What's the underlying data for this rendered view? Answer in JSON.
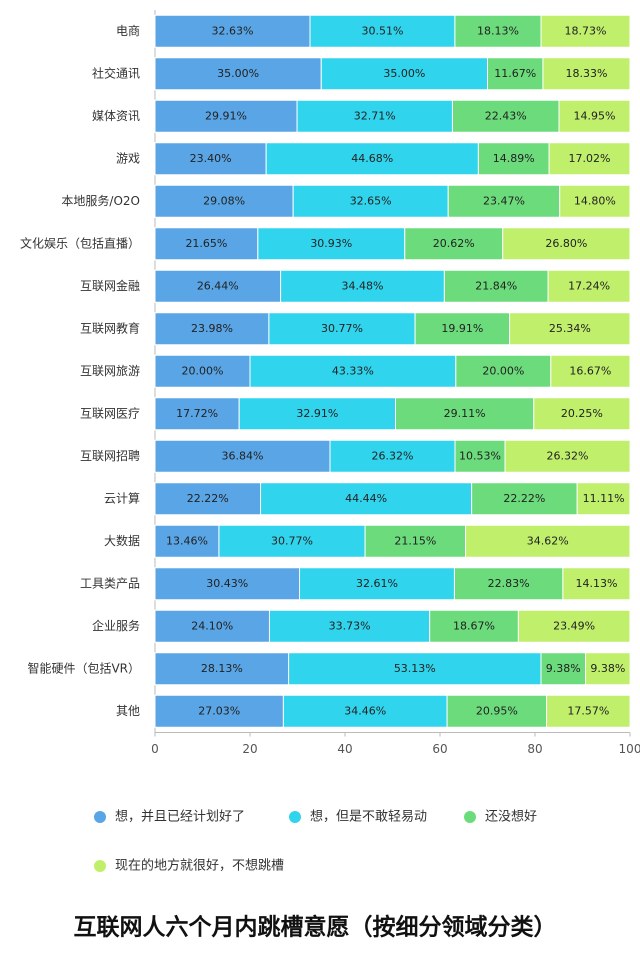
{
  "chart_data": {
    "type": "stacked-bar-horizontal",
    "title": "互联网人六个月内跳槽意愿（按细分领域分类）",
    "categories": [
      "电商",
      "社交通讯",
      "媒体资讯",
      "游戏",
      "本地服务/O2O",
      "文化娱乐（包括直播）",
      "互联网金融",
      "互联网教育",
      "互联网旅游",
      "互联网医疗",
      "互联网招聘",
      "云计算",
      "大数据",
      "工具类产品",
      "企业服务",
      "智能硬件（包括VR）",
      "其他"
    ],
    "series": [
      {
        "name": "想，并且已经计划好了",
        "color": "#5aa5e6",
        "values": [
          32.63,
          35.0,
          29.91,
          23.4,
          29.08,
          21.65,
          26.44,
          23.98,
          20.0,
          17.72,
          36.84,
          22.22,
          13.46,
          30.43,
          24.1,
          28.13,
          27.03
        ],
        "value_labels": [
          "32.63%",
          "35.00%",
          "29.91%",
          "23.40%",
          "29.08%",
          "21.65%",
          "26.44%",
          "23.98%",
          "20.00%",
          "17.72%",
          "36.84%",
          "22.22%",
          "13.46%",
          "30.43%",
          "24.10%",
          "28.13%",
          "27.03%"
        ]
      },
      {
        "name": "想，但是不敢轻易动",
        "color": "#30d4ec",
        "values": [
          30.51,
          35.0,
          32.71,
          44.68,
          32.65,
          30.93,
          34.48,
          30.77,
          43.33,
          32.91,
          26.32,
          44.44,
          30.77,
          32.61,
          33.73,
          53.13,
          34.46
        ],
        "value_labels": [
          "30.51%",
          "35.00%",
          "32.71%",
          "44.68%",
          "32.65%",
          "30.93%",
          "34.48%",
          "30.77%",
          "43.33%",
          "32.91%",
          "26.32%",
          "44.44%",
          "30.77%",
          "32.61%",
          "33.73%",
          "53.13%",
          "34.46%"
        ]
      },
      {
        "name": "还没想好",
        "color": "#6cdb7c",
        "values": [
          18.13,
          11.67,
          22.43,
          14.89,
          23.47,
          20.62,
          21.84,
          19.91,
          20.0,
          29.11,
          10.53,
          22.22,
          21.15,
          22.83,
          18.67,
          9.38,
          20.95
        ],
        "value_labels": [
          "18.13%",
          "11.67%",
          "22.43%",
          "14.89%",
          "23.47%",
          "20.62%",
          "21.84%",
          "19.91%",
          "20.00%",
          "29.11%",
          "10.53%",
          "22.22%",
          "21.15%",
          "22.83%",
          "18.67%",
          "9.38%",
          "20.95%"
        ]
      },
      {
        "name": "现在的地方就很好，不想跳槽",
        "color": "#c0ef6c",
        "values": [
          18.73,
          18.33,
          14.95,
          17.02,
          14.8,
          26.8,
          17.24,
          25.34,
          16.67,
          20.25,
          26.32,
          11.11,
          34.62,
          14.13,
          23.49,
          9.38,
          17.57
        ],
        "value_labels": [
          "18.73%",
          "18.33%",
          "14.95%",
          "17.02%",
          "14.80%",
          "26.80%",
          "17.24%",
          "25.34%",
          "16.67%",
          "20.25%",
          "26.32%",
          "11.11%",
          "34.62%",
          "14.13%",
          "23.49%",
          "9.38%",
          "17.57%"
        ]
      }
    ],
    "xlim": [
      0,
      100
    ],
    "xticks": [
      0,
      20,
      40,
      60,
      80,
      100
    ]
  }
}
